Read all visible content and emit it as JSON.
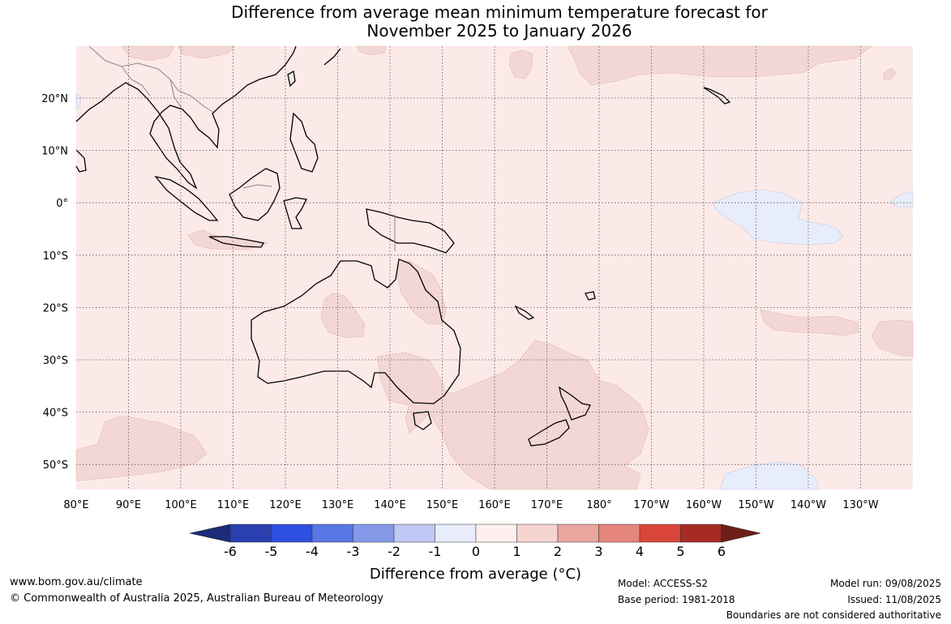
{
  "title": {
    "line1": "Difference from average mean minimum temperature forecast for",
    "line2": "November 2025 to January 2026"
  },
  "map": {
    "lon_labels": [
      "80°E",
      "90°E",
      "100°E",
      "110°E",
      "120°E",
      "130°E",
      "140°E",
      "150°E",
      "160°E",
      "170°E",
      "180°",
      "170°W",
      "160°W",
      "150°W",
      "140°W",
      "130°W"
    ],
    "lat_labels": [
      "20°N",
      "10°N",
      "0°",
      "10°S",
      "20°S",
      "30°S",
      "40°S",
      "50°S"
    ],
    "background_color": "#fbeae8",
    "anomaly_colors": {
      "zero_to_one": "#fbeae8",
      "one_to_two": "#f3d7d4",
      "minus_one_to_zero": "#e8edfb"
    }
  },
  "colorbar": {
    "tick_labels": [
      "-6",
      "-5",
      "-4",
      "-3",
      "-2",
      "-1",
      "0",
      "1",
      "2",
      "3",
      "4",
      "5",
      "6"
    ],
    "colors": [
      "#1b2a79",
      "#2a40b1",
      "#2e4fdf",
      "#5877e4",
      "#8699e9",
      "#bfc9f3",
      "#e8ecfb",
      "#fdf0ee",
      "#f5d4d0",
      "#eaa59f",
      "#e5857c",
      "#d94539",
      "#a52a24",
      "#6e1f19"
    ],
    "title": "Difference from average (°C)"
  },
  "footer": {
    "website": "www.bom.gov.au/climate",
    "copyright": "© Commonwealth of Australia 2025, Australian Bureau of Meteorology",
    "model": "Model: ACCESS-S2",
    "base_period": "Base period: 1981-2018",
    "model_run": "Model run: 09/08/2025",
    "issued": "Issued: 11/08/2025",
    "disclaimer": "Boundaries are not considered authoritative"
  }
}
